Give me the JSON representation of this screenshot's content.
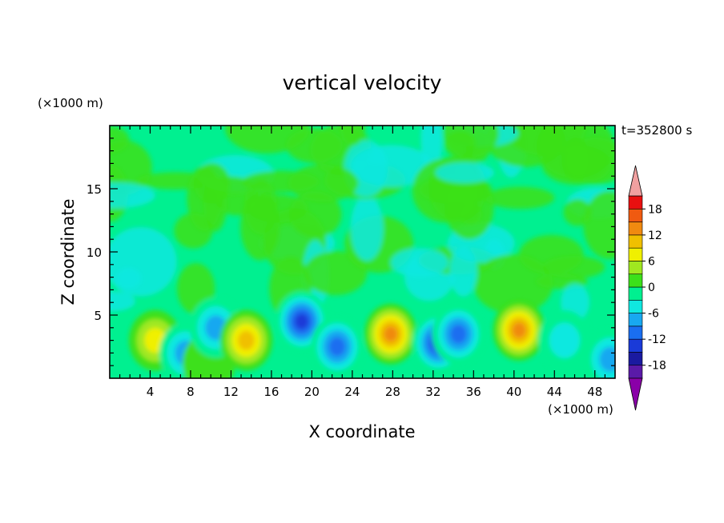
{
  "chart_data": {
    "type": "heatmap",
    "title": "vertical velocity",
    "xlabel": "X coordinate",
    "ylabel": "Z coordinate",
    "x_unit": "(×1000 m)",
    "y_unit": "(×1000 m)",
    "time_label": "t=352800 s",
    "xlim": [
      0,
      50
    ],
    "ylim": [
      0,
      20
    ],
    "x_ticks": [
      "4",
      "8",
      "12",
      "16",
      "20",
      "24",
      "28",
      "32",
      "36",
      "40",
      "44",
      "48"
    ],
    "y_ticks": [
      "5",
      "10",
      "15"
    ],
    "colorbar": {
      "levels": [
        -21,
        -18,
        -15,
        -12,
        -9,
        -6,
        -3,
        0,
        3,
        6,
        9,
        12,
        15,
        18,
        21
      ],
      "tick_labels": [
        "18",
        "12",
        "6",
        "0",
        "-6",
        "-12",
        "-18"
      ],
      "colors": [
        "#8a00a8",
        "#5a1aa8",
        "#1a1aa0",
        "#1a3ad8",
        "#1a6ef0",
        "#18a8f0",
        "#10e8e0",
        "#00f090",
        "#3ce01a",
        "#a0e820",
        "#f0f000",
        "#f0c000",
        "#f08a10",
        "#f05a10",
        "#e81010",
        "#f0a0a0"
      ]
    },
    "features": [
      {
        "kind": "updraft",
        "x": 4.5,
        "z": 3.0,
        "peak": 9
      },
      {
        "kind": "downdraft",
        "x": 7.5,
        "z": 2.0,
        "peak": -10
      },
      {
        "kind": "updraft",
        "x": 9.8,
        "z": 1.2,
        "peak": 4
      },
      {
        "kind": "downdraft",
        "x": 10.5,
        "z": 4.0,
        "peak": -8
      },
      {
        "kind": "updraft",
        "x": 13.5,
        "z": 3.0,
        "peak": 12
      },
      {
        "kind": "downdraft",
        "x": 19.0,
        "z": 4.5,
        "peak": -14
      },
      {
        "kind": "downdraft",
        "x": 22.5,
        "z": 2.5,
        "peak": -12
      },
      {
        "kind": "updraft",
        "x": 27.8,
        "z": 3.5,
        "peak": 15
      },
      {
        "kind": "downdraft",
        "x": 32.5,
        "z": 2.8,
        "peak": -16
      },
      {
        "kind": "downdraft",
        "x": 34.5,
        "z": 3.5,
        "peak": -12
      },
      {
        "kind": "updraft",
        "x": 40.5,
        "z": 3.8,
        "peak": 14
      },
      {
        "kind": "downdraft",
        "x": 45.0,
        "z": 3.0,
        "peak": -7
      },
      {
        "kind": "downdraft",
        "x": 49.5,
        "z": 1.5,
        "peak": -9
      }
    ]
  }
}
